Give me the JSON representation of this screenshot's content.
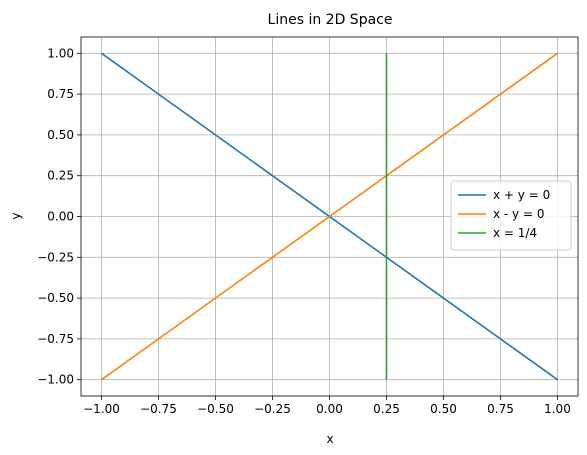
{
  "chart_data": {
    "type": "line",
    "title": "Lines in 2D Space",
    "xlabel": "x",
    "ylabel": "y",
    "xlim": [
      -1.09,
      1.09
    ],
    "ylim": [
      -1.1,
      1.1
    ],
    "grid": true,
    "legend_position": "center-right",
    "x_ticks": [
      -1.0,
      -0.75,
      -0.5,
      -0.25,
      0.0,
      0.25,
      0.5,
      0.75,
      1.0
    ],
    "x_tick_labels": [
      "−1.00",
      "−0.75",
      "−0.50",
      "−0.25",
      "0.00",
      "0.25",
      "0.50",
      "0.75",
      "1.00"
    ],
    "y_ticks": [
      1.0,
      0.75,
      0.5,
      0.25,
      0.0,
      -0.25,
      -0.5,
      -0.75,
      -1.0
    ],
    "y_tick_labels": [
      "1.00",
      "0.75",
      "0.50",
      "0.25",
      "0.00",
      "−0.25",
      "−0.50",
      "−0.75",
      "−1.00"
    ],
    "series": [
      {
        "name": "x + y = 0",
        "color": "#1f77b4",
        "x": [
          -1.0,
          1.0
        ],
        "y": [
          1.0,
          -1.0
        ]
      },
      {
        "name": "x - y = 0",
        "color": "#ff7f0e",
        "x": [
          -1.0,
          1.0
        ],
        "y": [
          -1.0,
          1.0
        ]
      },
      {
        "name": "x = 1/4",
        "color": "#2ca02c",
        "x": [
          0.25,
          0.25
        ],
        "y": [
          -1.0,
          1.0
        ]
      }
    ]
  }
}
